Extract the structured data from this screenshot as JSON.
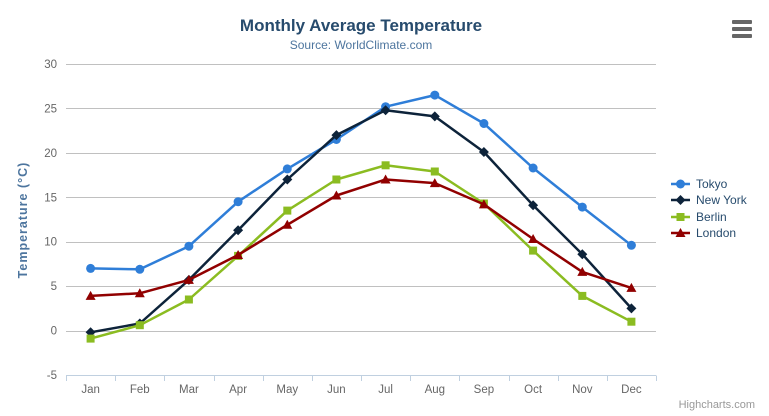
{
  "chart_data": {
    "type": "line",
    "title": "Monthly Average Temperature",
    "subtitle": "Source: WorldClimate.com",
    "xlabel": "",
    "ylabel": "Temperature (°C)",
    "ylim": [
      -5,
      30
    ],
    "yticks": [
      -5,
      0,
      5,
      10,
      15,
      20,
      25,
      30
    ],
    "grid": true,
    "legend_position": "right",
    "categories": [
      "Jan",
      "Feb",
      "Mar",
      "Apr",
      "May",
      "Jun",
      "Jul",
      "Aug",
      "Sep",
      "Oct",
      "Nov",
      "Dec"
    ],
    "series": [
      {
        "name": "Tokyo",
        "color": "#2f7ed8",
        "marker": "circle",
        "values": [
          7.0,
          6.9,
          9.5,
          14.5,
          18.2,
          21.5,
          25.2,
          26.5,
          23.3,
          18.3,
          13.9,
          9.6
        ]
      },
      {
        "name": "New York",
        "color": "#0d233a",
        "marker": "diamond",
        "values": [
          -0.2,
          0.8,
          5.7,
          11.3,
          17.0,
          22.0,
          24.8,
          24.1,
          20.1,
          14.1,
          8.6,
          2.5
        ]
      },
      {
        "name": "Berlin",
        "color": "#8bbc21",
        "marker": "square",
        "values": [
          -0.9,
          0.6,
          3.5,
          8.4,
          13.5,
          17.0,
          18.6,
          17.9,
          14.3,
          9.0,
          3.9,
          1.0
        ]
      },
      {
        "name": "London",
        "color": "#910000",
        "marker": "triangle",
        "values": [
          3.9,
          4.2,
          5.7,
          8.5,
          11.9,
          15.2,
          17.0,
          16.6,
          14.2,
          10.3,
          6.6,
          4.8
        ]
      }
    ]
  },
  "colors": {
    "title": "#274b6d",
    "subtitle": "#4d759e",
    "y_axis_title": "#4d759e",
    "axis_label": "#666666",
    "gridline": "#c0c0c0",
    "axis_line": "#c0d0e0",
    "legend_label": "#274b6d",
    "credits": "#999999",
    "export_icon": "#666666"
  },
  "export_menu": {
    "icon_name": "hamburger-menu-icon"
  },
  "credits": {
    "label": "Highcharts.com"
  }
}
